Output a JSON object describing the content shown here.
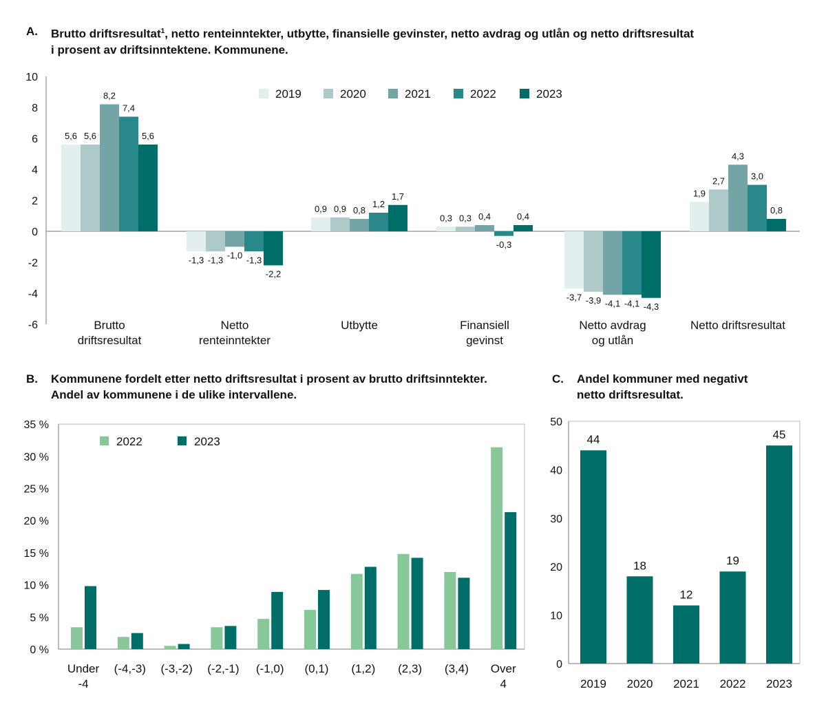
{
  "colors": {
    "y2019": "#e3eeee",
    "y2020": "#adc9c8",
    "y2021": "#74a5a6",
    "y2022": "#29888a",
    "y2023": "#006e68",
    "light_green": "#88c898",
    "axis": "#777777"
  },
  "chart_data": [
    {
      "id": "A",
      "type": "bar",
      "letter": "A.",
      "title_line1": "Brutto driftsresultat",
      "title_sup": "1",
      "title_line1_rest": ", netto renteinntekter, utbytte, finansielle gevinster, netto avdrag og utlån og netto driftsresultat",
      "title_line2": "i prosent av driftsinntektene. Kommunene.",
      "ylim": [
        -6,
        10
      ],
      "yticks": [
        10,
        8,
        6,
        4,
        2,
        0,
        -2,
        -4,
        -6
      ],
      "categories": [
        [
          "Brutto",
          "driftsresultat"
        ],
        [
          "Netto",
          "renteinntekter"
        ],
        [
          "Utbytte"
        ],
        [
          "Finansiell",
          "gevinst"
        ],
        [
          "Netto avdrag",
          "og utlån"
        ],
        [
          "Netto driftsresultat"
        ]
      ],
      "series": [
        {
          "name": "2019",
          "values": [
            5.6,
            -1.3,
            0.9,
            0.3,
            -3.7,
            1.9
          ],
          "labels": [
            "5,6",
            "-1,3",
            "0,9",
            "0,3",
            "-3,7",
            "1,9"
          ]
        },
        {
          "name": "2020",
          "values": [
            5.6,
            -1.3,
            0.9,
            0.3,
            -3.9,
            2.7
          ],
          "labels": [
            "5,6",
            "-1,3",
            "0,9",
            "0,3",
            "-3,9",
            "2,7"
          ]
        },
        {
          "name": "2021",
          "values": [
            8.2,
            -1.0,
            0.8,
            0.4,
            -4.1,
            4.3
          ],
          "labels": [
            "8,2",
            "-1,0",
            "0,8",
            "0,4",
            "-4,1",
            "4,3"
          ]
        },
        {
          "name": "2022",
          "values": [
            7.4,
            -1.3,
            1.2,
            -0.3,
            -4.1,
            3.0
          ],
          "labels": [
            "7,4",
            "-1,3",
            "1,2",
            "-0,3",
            "-4,1",
            "3,0"
          ]
        },
        {
          "name": "2023",
          "values": [
            5.6,
            -2.2,
            1.7,
            0.4,
            -4.3,
            0.8
          ],
          "labels": [
            "5,6",
            "-2,2",
            "1,7",
            "0,4",
            "-4,3",
            "0,8"
          ]
        }
      ]
    },
    {
      "id": "B",
      "type": "bar",
      "letter": "B.",
      "title_line1": "Kommunene fordelt etter netto driftsresultat i prosent av brutto driftsinntekter.",
      "title_line2": "Andel av kommunene i de ulike intervallene.",
      "ylim": [
        0,
        35
      ],
      "yticks": [
        {
          "v": 35,
          "label": "35 %"
        },
        {
          "v": 30,
          "label": "30 %"
        },
        {
          "v": 25,
          "label": "25 %"
        },
        {
          "v": 20,
          "label": "20 %"
        },
        {
          "v": 15,
          "label": "15 %"
        },
        {
          "v": 10,
          "label": "10 %"
        },
        {
          "v": 5,
          "label": "5 %"
        },
        {
          "v": 0,
          "label": "0 %"
        }
      ],
      "categories": [
        [
          "Under",
          "-4"
        ],
        [
          "(-4,-3)"
        ],
        [
          "(-3,-2)"
        ],
        [
          "(-2,-1)"
        ],
        [
          "(-1,0)"
        ],
        [
          "(0,1)"
        ],
        [
          "(1,2)"
        ],
        [
          "(2,3)"
        ],
        [
          "(3,4)"
        ],
        [
          "Over",
          "4"
        ]
      ],
      "series": [
        {
          "name": "2022",
          "values": [
            3.4,
            1.9,
            0.5,
            3.4,
            4.7,
            6.1,
            11.7,
            14.8,
            12.0,
            31.4
          ]
        },
        {
          "name": "2023",
          "values": [
            9.8,
            2.5,
            0.8,
            3.6,
            8.9,
            9.2,
            12.8,
            14.2,
            11.1,
            21.3
          ]
        }
      ]
    },
    {
      "id": "C",
      "type": "bar",
      "letter": "C.",
      "title_line1": "Andel kommuner med negativt",
      "title_line2": "netto driftsresultat.",
      "ylim": [
        0,
        50
      ],
      "yticks": [
        50,
        40,
        30,
        20,
        10,
        0
      ],
      "categories": [
        "2019",
        "2020",
        "2021",
        "2022",
        "2023"
      ],
      "values": [
        44,
        18,
        12,
        19,
        45
      ]
    }
  ]
}
